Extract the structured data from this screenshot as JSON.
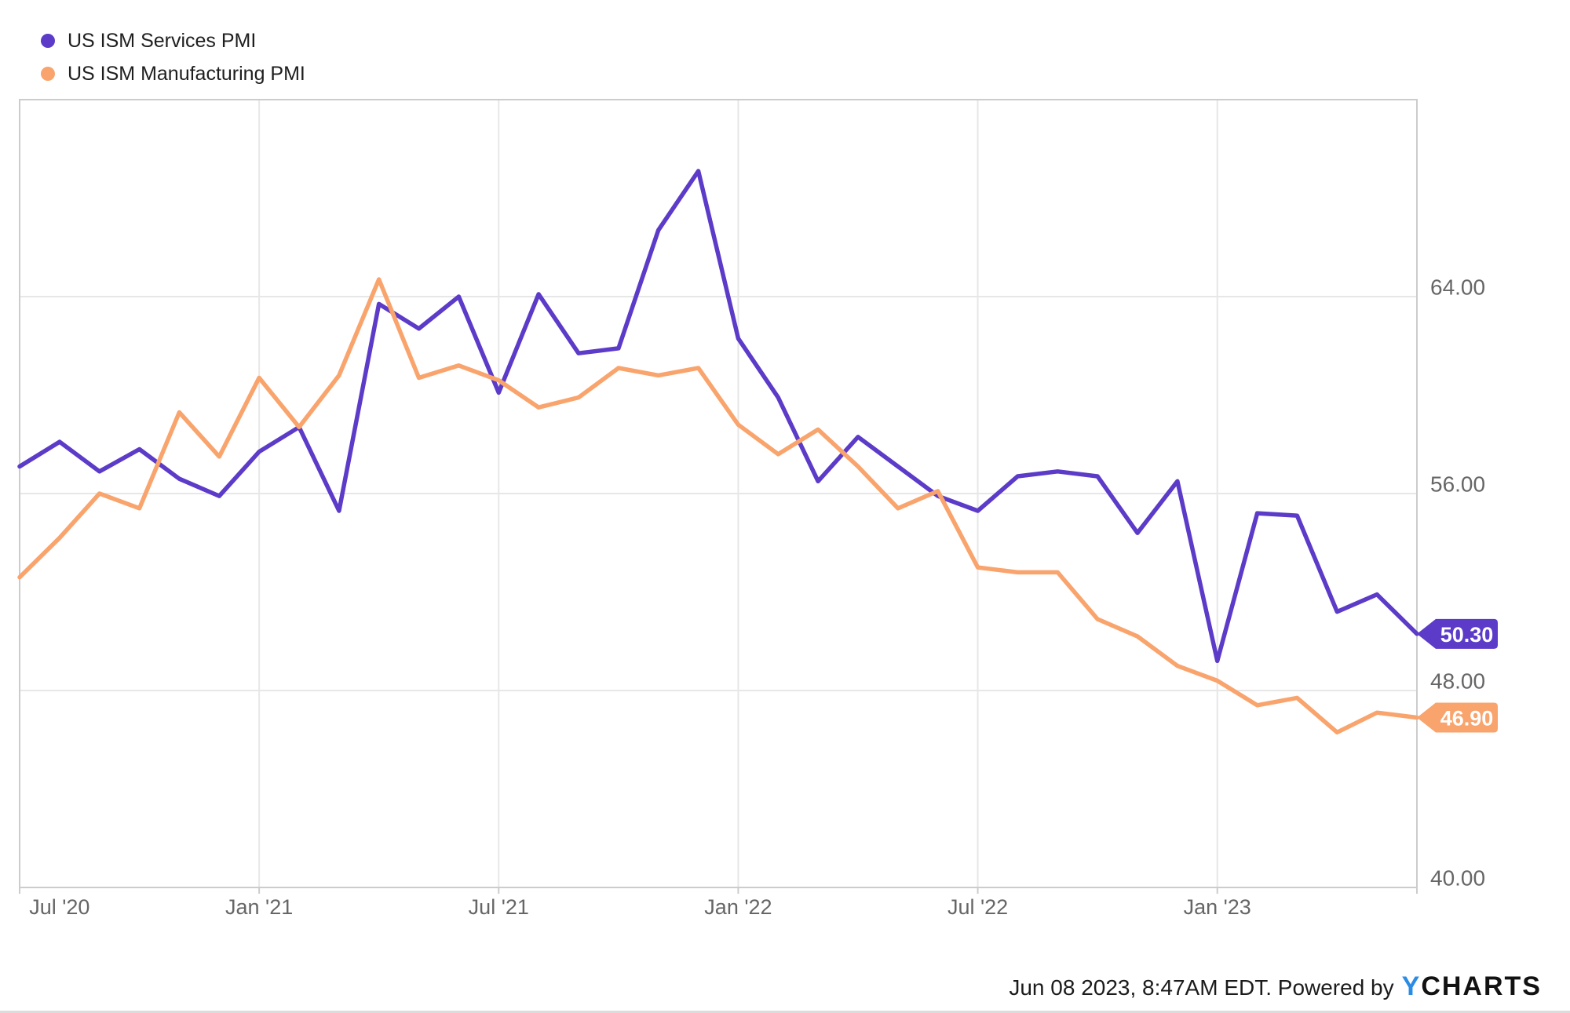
{
  "legend": {
    "items": [
      {
        "label": "US ISM Services PMI"
      },
      {
        "label": "US ISM Manufacturing PMI"
      }
    ]
  },
  "footer": {
    "timestamp_text": "Jun 08 2023, 8:47AM EDT. Powered by",
    "logo_y": "Y",
    "logo_charts": "CHARTS"
  },
  "colors": {
    "services": "#5b3bc8",
    "manufacturing": "#f9a46d",
    "grid": "#e7e7e7",
    "frame": "#cccccc",
    "axis_text": "#666666",
    "badge_text": "#ffffff",
    "logo_blue": "#2b8ce4"
  },
  "chart_data": {
    "type": "line",
    "title": "",
    "xlabel": "",
    "ylabel": "",
    "grid": true,
    "legend_position": "top-left",
    "x": [
      "Jun '20",
      "Jul '20",
      "Aug '20",
      "Sep '20",
      "Oct '20",
      "Nov '20",
      "Dec '20",
      "Jan '21",
      "Feb '21",
      "Mar '21",
      "Apr '21",
      "May '21",
      "Jun '21",
      "Jul '21",
      "Aug '21",
      "Sep '21",
      "Oct '21",
      "Nov '21",
      "Dec '21",
      "Jan '22",
      "Feb '22",
      "Mar '22",
      "Apr '22",
      "May '22",
      "Jun '22",
      "Jul '22",
      "Aug '22",
      "Sep '22",
      "Oct '22",
      "Nov '22",
      "Dec '22",
      "Jan '23",
      "Feb '23",
      "Mar '23",
      "Apr '23",
      "May '23"
    ],
    "series": [
      {
        "id": "services",
        "name": "US ISM Services PMI",
        "color": "#5b3bc8",
        "end_label": "50.30",
        "values": [
          57.1,
          58.1,
          56.9,
          57.8,
          56.6,
          55.9,
          57.7,
          58.7,
          55.3,
          63.7,
          62.7,
          64.0,
          60.1,
          64.1,
          61.7,
          61.9,
          66.7,
          69.1,
          62.3,
          59.9,
          56.5,
          58.3,
          57.1,
          55.9,
          55.3,
          56.7,
          56.9,
          56.7,
          54.4,
          56.5,
          49.2,
          55.2,
          55.1,
          51.2,
          51.9,
          50.3
        ]
      },
      {
        "id": "manufacturing",
        "name": "US ISM Manufacturing PMI",
        "color": "#f9a46d",
        "end_label": "46.90",
        "values": [
          52.6,
          54.2,
          56.0,
          55.4,
          59.3,
          57.5,
          60.7,
          58.7,
          60.8,
          64.7,
          60.7,
          61.2,
          60.6,
          59.5,
          59.9,
          61.1,
          60.8,
          61.1,
          58.8,
          57.6,
          58.6,
          57.1,
          55.4,
          56.1,
          53.0,
          52.8,
          52.8,
          50.9,
          50.2,
          49.0,
          48.4,
          47.4,
          47.7,
          46.3,
          47.1,
          46.9
        ]
      }
    ],
    "x_axis": {
      "ticks": [
        {
          "label": "Jul '20",
          "month_index": 0,
          "label_month_index": 1
        },
        {
          "label": "Jan '21",
          "month_index": 6
        },
        {
          "label": "Jul '21",
          "month_index": 12
        },
        {
          "label": "Jan '22",
          "month_index": 18
        },
        {
          "label": "Jul '22",
          "month_index": 24
        },
        {
          "label": "Jan '23",
          "month_index": 30
        }
      ]
    },
    "y_axis": {
      "position": "right",
      "range": [
        40,
        72
      ],
      "ticks": [
        {
          "label": "64.00",
          "value": 64
        },
        {
          "label": "56.00",
          "value": 56
        },
        {
          "label": "48.00",
          "value": 48
        },
        {
          "label": "40.00",
          "value": 40
        }
      ]
    }
  }
}
